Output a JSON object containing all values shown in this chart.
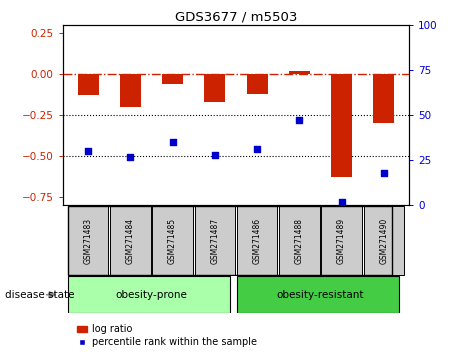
{
  "title": "GDS3677 / m5503",
  "samples": [
    "GSM271483",
    "GSM271484",
    "GSM271485",
    "GSM271487",
    "GSM271486",
    "GSM271488",
    "GSM271489",
    "GSM271490"
  ],
  "log_ratio": [
    -0.13,
    -0.2,
    -0.06,
    -0.17,
    -0.12,
    0.02,
    -0.63,
    -0.3
  ],
  "percentile_rank": [
    30,
    27,
    35,
    28,
    31,
    47,
    2,
    18
  ],
  "group1_label": "obesity-prone",
  "group1_count": 4,
  "group2_label": "obesity-resistant",
  "group2_count": 4,
  "disease_state_label": "disease state",
  "ylim_left": [
    -0.8,
    0.3
  ],
  "ylim_right": [
    0,
    100
  ],
  "yticks_left": [
    0.25,
    0.0,
    -0.25,
    -0.5,
    -0.75
  ],
  "yticks_right": [
    100,
    75,
    50,
    25,
    0
  ],
  "bar_color": "#cc2200",
  "dot_color": "#0000cc",
  "hline_color": "#cc2200",
  "group1_bg": "#aaffaa",
  "group2_bg": "#44cc44",
  "sample_bg": "#cccccc",
  "legend_bar_label": "log ratio",
  "legend_dot_label": "percentile rank within the sample",
  "bar_width": 0.5
}
